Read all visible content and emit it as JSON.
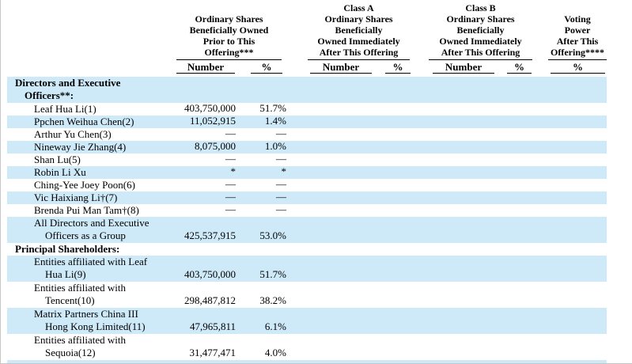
{
  "table": {
    "highlight_color": "#cee9f8",
    "column_groups": [
      {
        "title_lines": [
          "Ordinary Shares",
          "Beneficially Owned",
          "Prior to This",
          "Offering***"
        ],
        "sub_columns": [
          "Number",
          "%"
        ]
      },
      {
        "title_lines": [
          "Class A",
          "Ordinary Shares",
          "Beneficially",
          "Owned Immediately",
          "After This Offering"
        ],
        "sub_columns": [
          "Number",
          "%"
        ]
      },
      {
        "title_lines": [
          "Class B",
          "Ordinary Shares",
          "Beneficially",
          "Owned Immediately",
          "After This Offering"
        ],
        "sub_columns": [
          "Number",
          "%"
        ]
      },
      {
        "title_lines": [
          "Voting",
          "Power",
          "After This",
          "Offering****"
        ],
        "sub_columns": [
          "%"
        ]
      }
    ],
    "rows": [
      {
        "lines": [
          "Directors and Executive",
          "Officers**:"
        ],
        "indent": "sec",
        "bold": true,
        "shaded": true,
        "number": "",
        "pct": ""
      },
      {
        "lines": [
          "Leaf Hua Li(1)"
        ],
        "indent": "name",
        "bold": false,
        "shaded": false,
        "number": "403,750,000",
        "pct": "51.7%"
      },
      {
        "lines": [
          "Ppchen Weihua Chen(2)"
        ],
        "indent": "name",
        "bold": false,
        "shaded": true,
        "number": "11,052,915",
        "pct": "1.4%"
      },
      {
        "lines": [
          "Arthur Yu Chen(3)"
        ],
        "indent": "name",
        "bold": false,
        "shaded": false,
        "number": "—",
        "pct": "—"
      },
      {
        "lines": [
          "Nineway Jie Zhang(4)"
        ],
        "indent": "name",
        "bold": false,
        "shaded": true,
        "number": "8,075,000",
        "pct": "1.0%"
      },
      {
        "lines": [
          "Shan Lu(5)"
        ],
        "indent": "name",
        "bold": false,
        "shaded": false,
        "number": "—",
        "pct": "—"
      },
      {
        "lines": [
          "Robin Li Xu"
        ],
        "indent": "name",
        "bold": false,
        "shaded": true,
        "number": "*",
        "pct": "*"
      },
      {
        "lines": [
          "Ching-Yee Joey Poon(6)"
        ],
        "indent": "name",
        "bold": false,
        "shaded": false,
        "number": "—",
        "pct": "—"
      },
      {
        "lines": [
          "Vic Haixiang Li†(7)"
        ],
        "indent": "name",
        "bold": false,
        "shaded": true,
        "number": "—",
        "pct": "—"
      },
      {
        "lines": [
          "Brenda Pui Man Tam†(8)"
        ],
        "indent": "name",
        "bold": false,
        "shaded": false,
        "number": "—",
        "pct": "—"
      },
      {
        "lines": [
          "All Directors and Executive",
          "Officers as a Group"
        ],
        "indent": "name",
        "bold": false,
        "shaded": true,
        "number": "425,537,915",
        "pct": "53.0%"
      },
      {
        "lines": [
          "Principal Shareholders:"
        ],
        "indent": "sec",
        "bold": true,
        "shaded": false,
        "number": "",
        "pct": ""
      },
      {
        "lines": [
          "Entities affiliated with Leaf",
          "Hua Li(9)"
        ],
        "indent": "name",
        "bold": false,
        "shaded": true,
        "number": "403,750,000",
        "pct": "51.7%"
      },
      {
        "lines": [
          "Entities affiliated with",
          "Tencent(10)"
        ],
        "indent": "name",
        "bold": false,
        "shaded": false,
        "number": "298,487,812",
        "pct": "38.2%"
      },
      {
        "lines": [
          "Matrix Partners China III",
          "Hong Kong Limited(11)"
        ],
        "indent": "name",
        "bold": false,
        "shaded": true,
        "number": "47,965,811",
        "pct": "6.1%"
      },
      {
        "lines": [
          "Entities affiliated with",
          "Sequoia(12)"
        ],
        "indent": "name",
        "bold": false,
        "shaded": false,
        "number": "31,477,471",
        "pct": "4.0%"
      }
    ]
  }
}
